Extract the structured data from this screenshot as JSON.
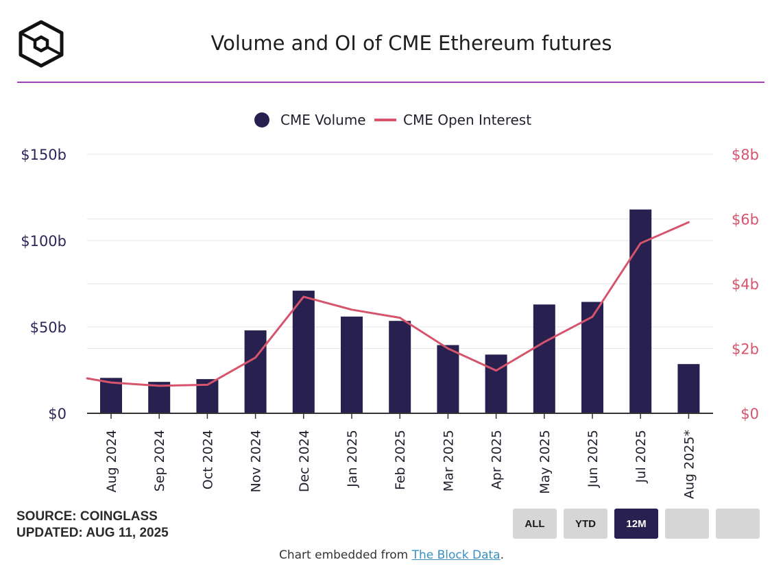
{
  "title": "Volume and OI of CME Ethereum futures",
  "logo_icon": "the-block-cube-logo",
  "source_line": "SOURCE: COINGLASS",
  "updated_line": "UPDATED: AUG 11, 2025",
  "buttons": [
    {
      "label": "ALL",
      "active": false
    },
    {
      "label": "YTD",
      "active": false
    },
    {
      "label": "12M",
      "active": true
    },
    {
      "label": "",
      "active": false
    },
    {
      "label": "",
      "active": false
    }
  ],
  "embed": {
    "prefix": "Chart embedded from ",
    "link": "The Block Data",
    "suffix": "."
  },
  "colors": {
    "volume": "#28214f",
    "open_interest": "#d6546c",
    "title_rule": "#a63fbf",
    "grid": "#e6e6e6"
  },
  "chart_data": {
    "type": "bar",
    "categories": [
      "Aug 2024",
      "Sep 2024",
      "Oct 2024",
      "Nov 2024",
      "Dec 2024",
      "Jan 2025",
      "Feb 2025",
      "Mar 2025",
      "Apr 2025",
      "May 2025",
      "Jun 2025",
      "Jul 2025",
      "Aug 2025*"
    ],
    "legend": [
      {
        "name": "CME Volume",
        "marker": "circle"
      },
      {
        "name": "CME Open Interest",
        "marker": "line"
      }
    ],
    "legend_position": "top-center",
    "series": [
      {
        "name": "CME Volume",
        "type": "bar",
        "axis": "left",
        "values": [
          20.5,
          18.2,
          19.8,
          48.0,
          71.0,
          56.0,
          53.5,
          39.5,
          34.0,
          63.0,
          64.5,
          118.0,
          28.5
        ]
      },
      {
        "name": "CME Open Interest",
        "type": "line",
        "axis": "right",
        "values": [
          0.95,
          0.85,
          0.88,
          1.72,
          3.6,
          3.2,
          2.95,
          2.0,
          1.32,
          2.2,
          2.98,
          5.25,
          5.9
        ]
      }
    ],
    "open_interest_lead_in": 1.08,
    "y_left": {
      "min": 0,
      "max": 150,
      "ticks": [
        0,
        50,
        100,
        150
      ],
      "labels": [
        "$0",
        "$50b",
        "$100b",
        "$150b"
      ]
    },
    "y_right": {
      "min": 0,
      "max": 8,
      "ticks": [
        0,
        2,
        4,
        6,
        8
      ],
      "labels": [
        "$0",
        "$2b",
        "$4b",
        "$6b",
        "$8b"
      ]
    },
    "grid": true
  }
}
